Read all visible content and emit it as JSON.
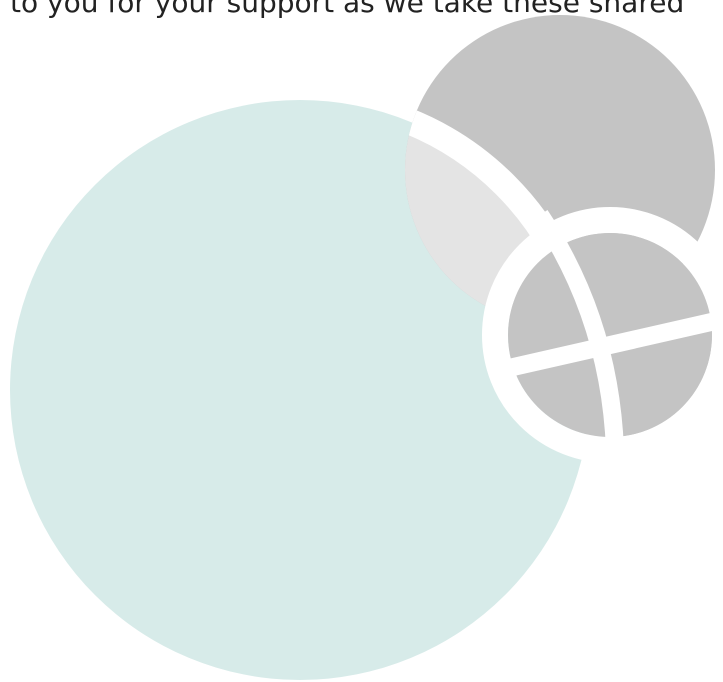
{
  "text": "to you for your support as we take these shared"
}
